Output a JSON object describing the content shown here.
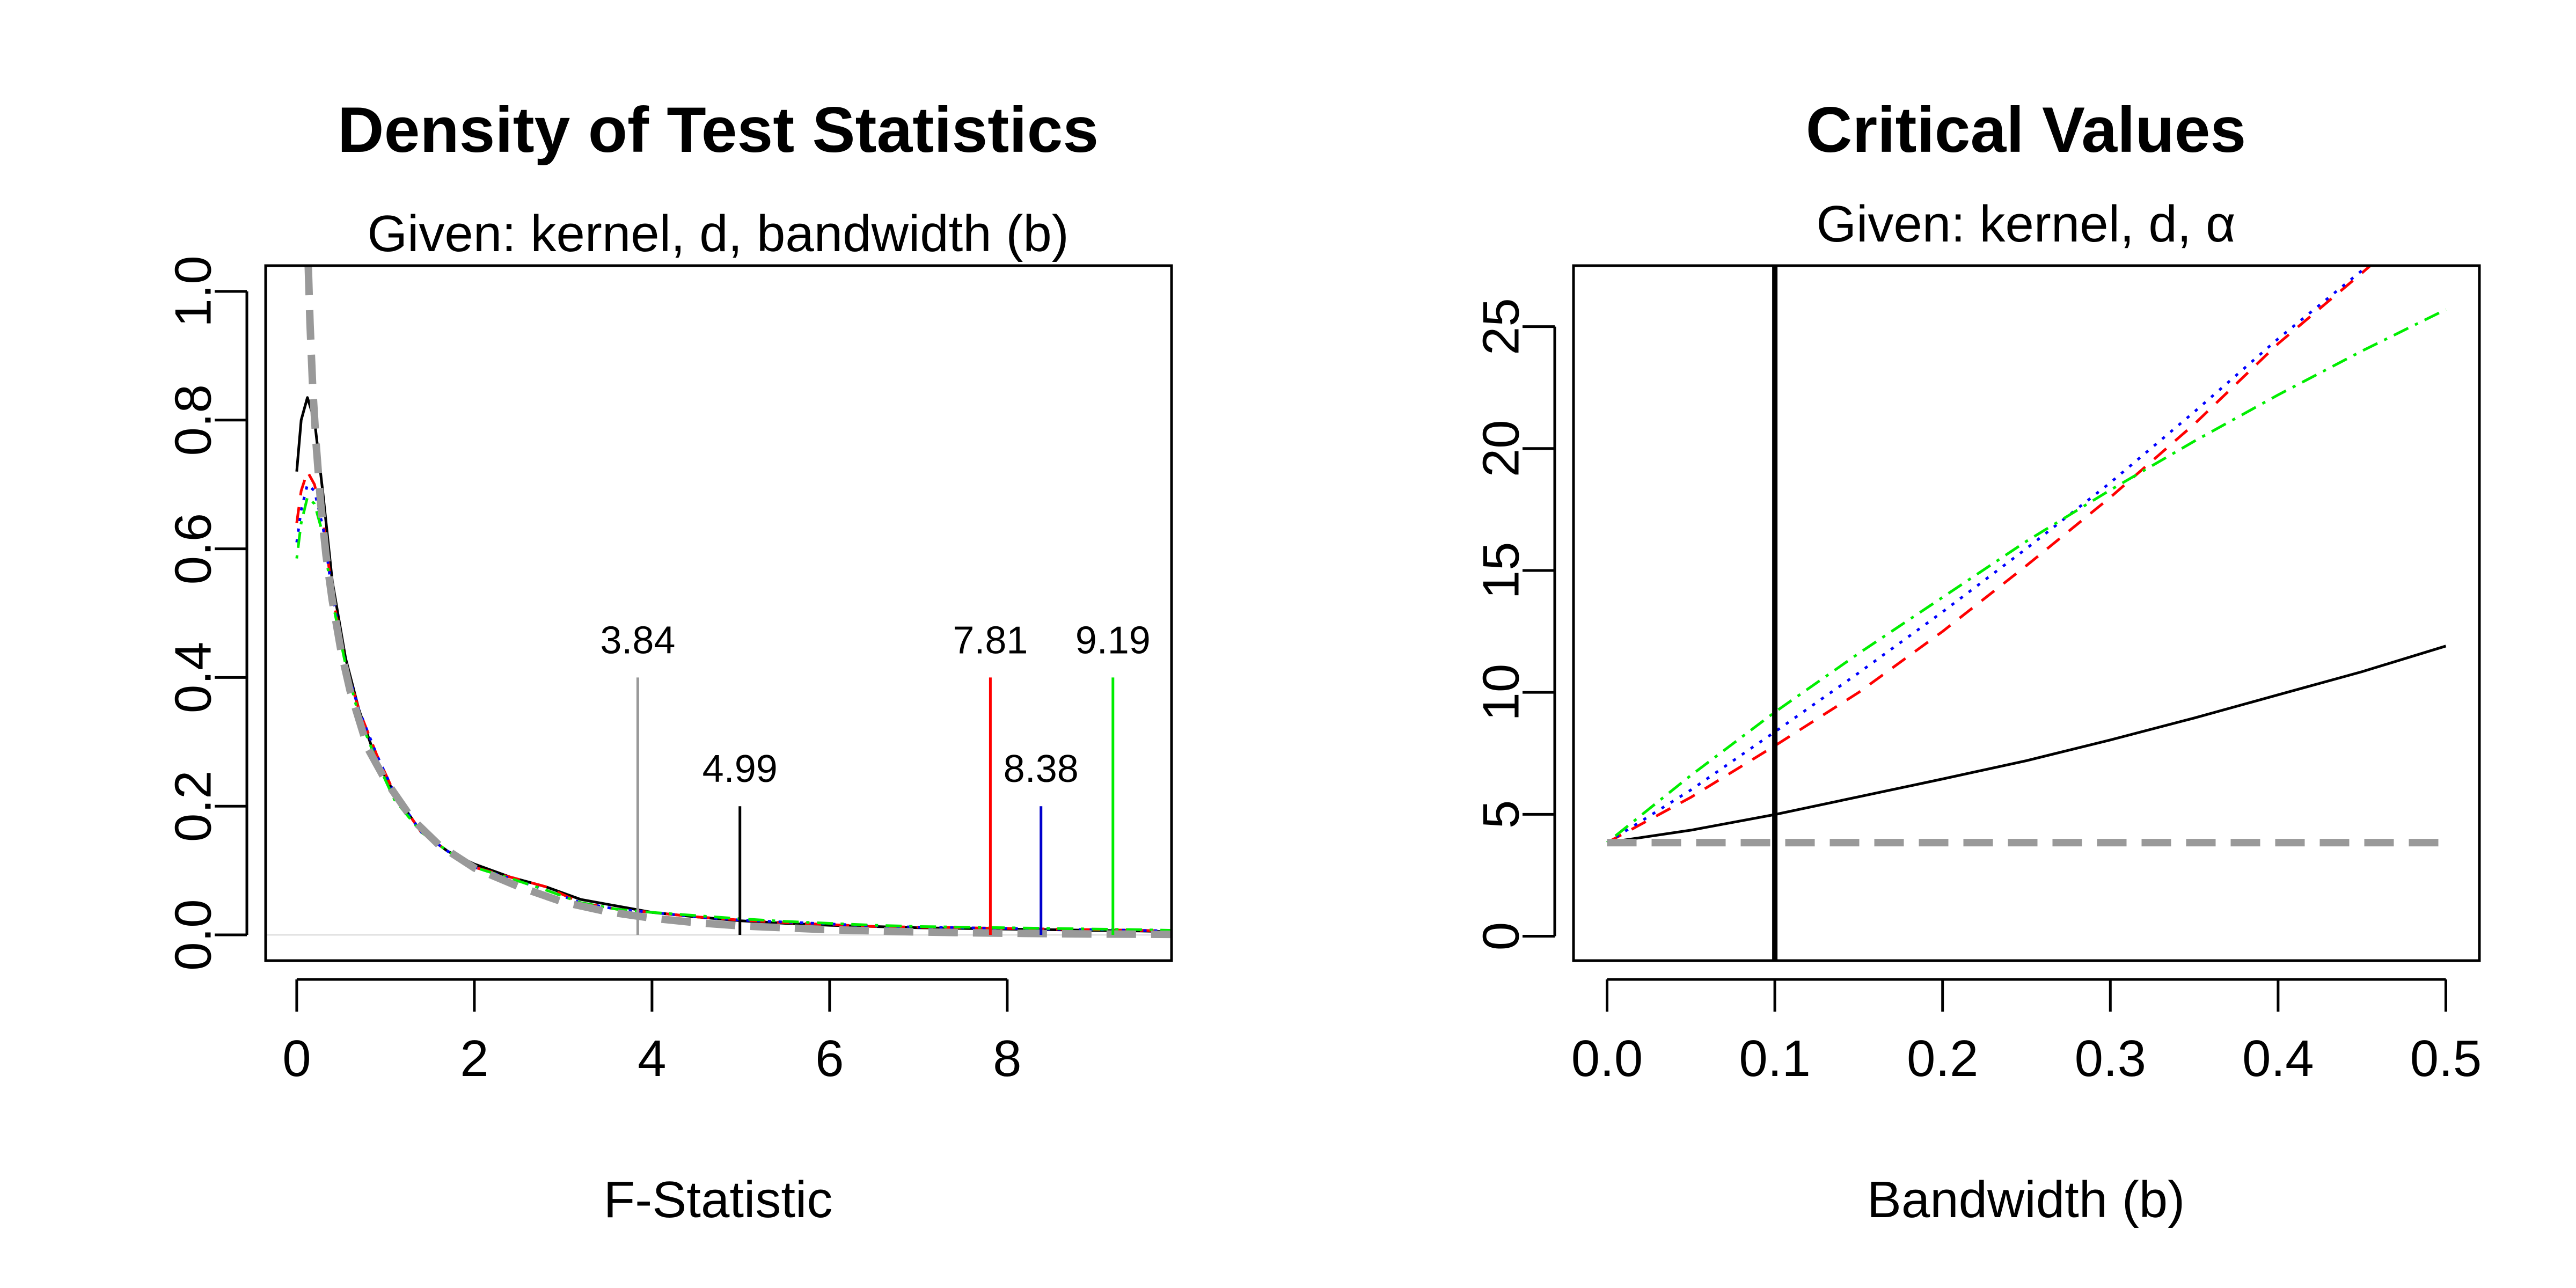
{
  "chart_data": [
    {
      "type": "line",
      "title": "Density of Test Statistics",
      "subtitle": "Given: kernel, d, bandwidth (b)",
      "xlabel": "F-Statistic",
      "ylabel": "",
      "xlim": [
        -0.35,
        9.85
      ],
      "ylim": [
        -0.04,
        1.04
      ],
      "xticks": [
        0,
        2,
        4,
        6,
        8
      ],
      "yticks": [
        0.0,
        0.2,
        0.4,
        0.6,
        0.8,
        1.0
      ],
      "xtick_labels": [
        "0",
        "2",
        "4",
        "6",
        "8"
      ],
      "ytick_labels": [
        "0.0",
        "0.2",
        "0.4",
        "0.6",
        "0.8",
        "1.0"
      ],
      "series": [
        {
          "color": "#000000",
          "dash": "solid",
          "x": [
            0.0,
            0.05,
            0.12,
            0.2,
            0.3,
            0.4,
            0.55,
            0.7,
            0.9,
            1.1,
            1.4,
            1.7,
            2.0,
            2.4,
            2.8,
            3.2,
            3.6,
            4.0,
            4.5,
            5.0,
            5.5,
            6.0,
            6.5,
            7.0,
            7.5,
            8.0,
            8.5,
            9.0,
            9.5,
            9.85
          ],
          "y": [
            0.72,
            0.8,
            0.835,
            0.8,
            0.68,
            0.55,
            0.43,
            0.35,
            0.27,
            0.22,
            0.16,
            0.13,
            0.11,
            0.09,
            0.075,
            0.055,
            0.045,
            0.035,
            0.028,
            0.022,
            0.018,
            0.015,
            0.013,
            0.011,
            0.01,
            0.009,
            0.008,
            0.007,
            0.006,
            0.005
          ]
        },
        {
          "color": "#ff0000",
          "dash": "dashed",
          "x": [
            0.0,
            0.05,
            0.12,
            0.2,
            0.3,
            0.4,
            0.55,
            0.7,
            0.9,
            1.1,
            1.4,
            1.7,
            2.0,
            2.4,
            2.8,
            3.2,
            3.6,
            4.0,
            4.5,
            5.0,
            5.5,
            6.0,
            6.5,
            7.0,
            7.5,
            8.0,
            8.5,
            9.0,
            9.5,
            9.85
          ],
          "y": [
            0.64,
            0.69,
            0.72,
            0.7,
            0.64,
            0.53,
            0.42,
            0.35,
            0.28,
            0.22,
            0.16,
            0.13,
            0.105,
            0.09,
            0.075,
            0.05,
            0.04,
            0.035,
            0.028,
            0.023,
            0.019,
            0.016,
            0.013,
            0.012,
            0.011,
            0.01,
            0.009,
            0.008,
            0.007,
            0.006
          ]
        },
        {
          "color": "#0000ff",
          "dash": "dotted",
          "x": [
            0.0,
            0.05,
            0.12,
            0.2,
            0.3,
            0.4,
            0.55,
            0.7,
            0.9,
            1.1,
            1.4,
            1.7,
            2.0,
            2.4,
            2.8,
            3.2,
            3.6,
            4.0,
            4.5,
            5.0,
            5.5,
            6.0,
            6.5,
            7.0,
            7.5,
            8.0,
            8.5,
            9.0,
            9.5,
            9.85
          ],
          "y": [
            0.61,
            0.66,
            0.7,
            0.69,
            0.63,
            0.53,
            0.42,
            0.35,
            0.28,
            0.22,
            0.16,
            0.13,
            0.105,
            0.088,
            0.07,
            0.05,
            0.04,
            0.035,
            0.028,
            0.023,
            0.02,
            0.017,
            0.014,
            0.012,
            0.011,
            0.01,
            0.009,
            0.008,
            0.007,
            0.006
          ]
        },
        {
          "color": "#00ee00",
          "dash": "dotdash",
          "x": [
            0.0,
            0.05,
            0.12,
            0.2,
            0.3,
            0.4,
            0.55,
            0.7,
            0.9,
            1.1,
            1.4,
            1.7,
            2.0,
            2.4,
            2.8,
            3.2,
            3.6,
            4.0,
            4.5,
            5.0,
            5.5,
            6.0,
            6.5,
            7.0,
            7.5,
            8.0,
            8.5,
            9.0,
            9.5,
            9.85
          ],
          "y": [
            0.585,
            0.64,
            0.68,
            0.67,
            0.62,
            0.52,
            0.42,
            0.34,
            0.27,
            0.21,
            0.16,
            0.13,
            0.105,
            0.088,
            0.07,
            0.05,
            0.04,
            0.035,
            0.03,
            0.025,
            0.021,
            0.018,
            0.015,
            0.013,
            0.012,
            0.011,
            0.01,
            0.009,
            0.008,
            0.007
          ]
        },
        {
          "color": "#999999",
          "dash": "longdash-thick",
          "x": [
            0.13,
            0.15,
            0.18,
            0.22,
            0.27,
            0.33,
            0.4,
            0.5,
            0.6,
            0.8,
            1.0,
            1.3,
            1.6,
            2.0,
            2.5,
            3.0,
            3.5,
            4.0,
            4.5,
            5.0,
            6.0,
            7.0,
            8.0,
            9.0,
            9.85
          ],
          "y": [
            1.04,
            0.95,
            0.85,
            0.76,
            0.67,
            0.59,
            0.52,
            0.44,
            0.38,
            0.29,
            0.24,
            0.18,
            0.14,
            0.104,
            0.075,
            0.051,
            0.036,
            0.026,
            0.019,
            0.014,
            0.008,
            0.0045,
            0.0025,
            0.0014,
            0.0008
          ]
        }
      ],
      "reference_line": {
        "y": 0,
        "color": "#e0e0e0"
      },
      "critical_values": [
        {
          "x": 3.84,
          "height": 0.4,
          "label": "3.84",
          "color": "#999999"
        },
        {
          "x": 4.99,
          "height": 0.2,
          "label": "4.99",
          "color": "#000000"
        },
        {
          "x": 7.81,
          "height": 0.4,
          "label": "7.81",
          "color": "#ff0000"
        },
        {
          "x": 8.38,
          "height": 0.2,
          "label": "8.38",
          "color": "#0000cc"
        },
        {
          "x": 9.19,
          "height": 0.4,
          "label": "9.19",
          "color": "#00ee00"
        }
      ]
    },
    {
      "type": "line",
      "title": "Critical Values",
      "subtitle": "Given: kernel, d, α",
      "xlabel": "Bandwidth (b)",
      "ylabel": "",
      "xlim": [
        -0.02,
        0.52
      ],
      "ylim": [
        -1.0,
        27.5
      ],
      "xticks": [
        0.0,
        0.1,
        0.2,
        0.3,
        0.4,
        0.5
      ],
      "yticks": [
        0,
        5,
        10,
        15,
        20,
        25
      ],
      "xtick_labels": [
        "0.0",
        "0.1",
        "0.2",
        "0.3",
        "0.4",
        "0.5"
      ],
      "ytick_labels": [
        "0",
        "5",
        "10",
        "15",
        "20",
        "25"
      ],
      "series": [
        {
          "color": "#000000",
          "dash": "solid",
          "x": [
            0.0,
            0.05,
            0.1,
            0.15,
            0.2,
            0.25,
            0.3,
            0.35,
            0.4,
            0.45,
            0.5
          ],
          "y": [
            3.84,
            4.35,
            4.99,
            5.72,
            6.45,
            7.2,
            8.05,
            8.95,
            9.9,
            10.85,
            11.9
          ]
        },
        {
          "color": "#ff0000",
          "dash": "dashed",
          "x": [
            0.0,
            0.05,
            0.1,
            0.15,
            0.2,
            0.25,
            0.3,
            0.35,
            0.4,
            0.45,
            0.46
          ],
          "y": [
            3.84,
            5.7,
            7.81,
            10.0,
            12.5,
            15.2,
            18.0,
            21.0,
            24.3,
            27.2,
            27.8
          ]
        },
        {
          "color": "#0000ff",
          "dash": "dotted",
          "x": [
            0.0,
            0.05,
            0.1,
            0.15,
            0.2,
            0.25,
            0.3,
            0.35,
            0.4,
            0.45,
            0.46
          ],
          "y": [
            3.84,
            6.0,
            8.38,
            10.8,
            13.3,
            15.9,
            18.6,
            21.5,
            24.5,
            27.3,
            27.9
          ]
        },
        {
          "color": "#00ee00",
          "dash": "dotdash",
          "x": [
            0.0,
            0.05,
            0.1,
            0.15,
            0.2,
            0.25,
            0.3,
            0.35,
            0.4,
            0.45,
            0.5
          ],
          "y": [
            3.84,
            6.6,
            9.19,
            11.6,
            13.9,
            16.2,
            18.3,
            20.3,
            22.2,
            24.0,
            25.7
          ]
        },
        {
          "color": "#999999",
          "dash": "longdash-thick",
          "x": [
            0.0,
            0.5
          ],
          "y": [
            3.84,
            3.84
          ]
        }
      ],
      "vertical_line": {
        "x": 0.1,
        "color": "#000000"
      }
    }
  ]
}
